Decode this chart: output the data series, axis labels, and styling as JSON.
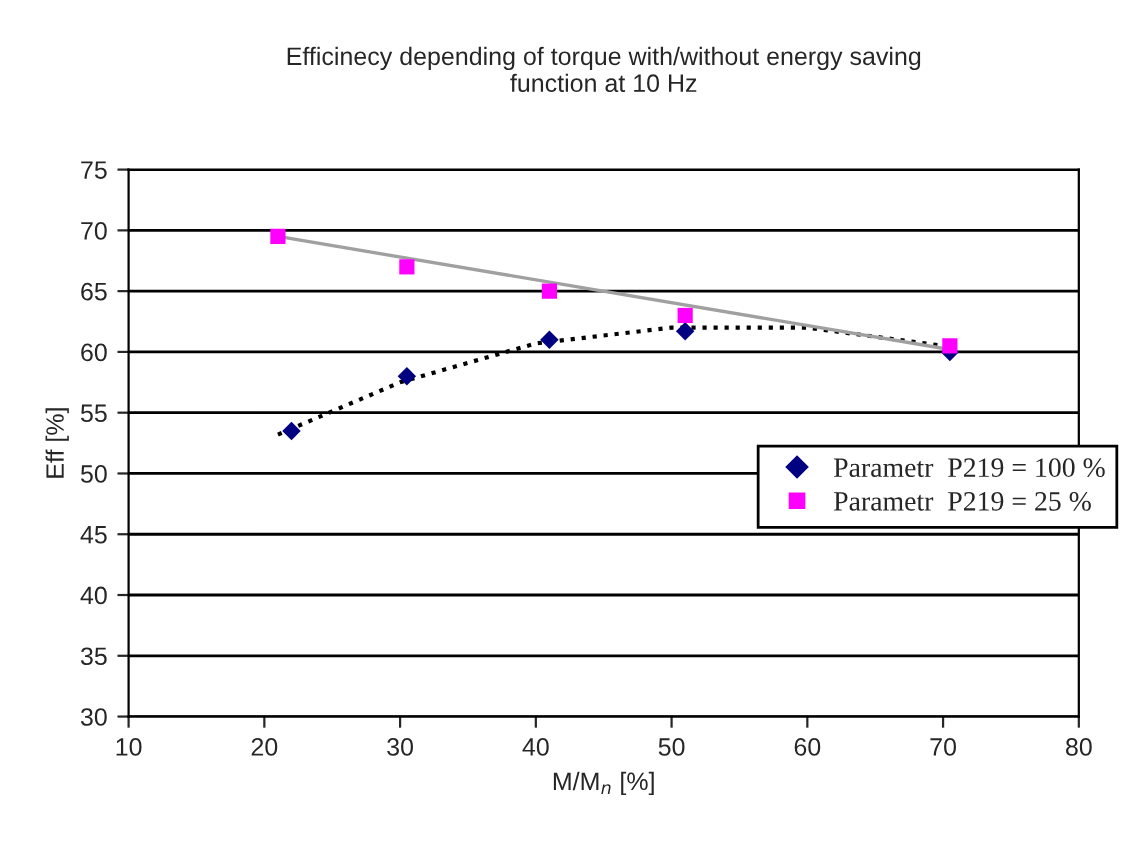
{
  "chart_data": {
    "type": "scatter",
    "title": "Efficinecy depending of torque with/without energy saving\nfunction at 10 Hz",
    "xlabel": "M/M$_{n}$ [%]",
    "ylabel": "Eff [%]",
    "xlim": [
      10,
      80
    ],
    "xticks": [
      10,
      20,
      30,
      40,
      50,
      60,
      70,
      80
    ],
    "ylim": [
      30,
      75
    ],
    "yticks": [
      30,
      35,
      40,
      45,
      50,
      55,
      60,
      65,
      70,
      75
    ],
    "grid": "y",
    "legend": "right",
    "series": [
      {
        "type": "line",
        "color": "#000000",
        "line_style": "dotted",
        "marker": "none",
        "x": [
          21,
          30,
          40,
          50,
          60,
          70
        ],
        "values": [
          53.2,
          57.5,
          60.7,
          62,
          62,
          60.5
        ]
      },
      {
        "type": "line",
        "color": "#a0a0a0",
        "line_style": "solid",
        "marker": "none",
        "x": [
          21,
          70.5
        ],
        "values": [
          69.5,
          60.2
        ]
      },
      {
        "name": "Parametr  P219 = 100 %",
        "color": "#000080",
        "marker": "diamond",
        "x": [
          22,
          30.5,
          41,
          51,
          70.5
        ],
        "values": [
          53.5,
          58,
          61,
          61.7,
          60
        ]
      },
      {
        "name": "Parametr  P219 = 25 %",
        "color": "#ff00ff",
        "marker": "square",
        "x": [
          21,
          30.5,
          41,
          51,
          70.5
        ],
        "values": [
          69.5,
          67,
          65,
          63,
          60.5
        ]
      }
    ]
  }
}
